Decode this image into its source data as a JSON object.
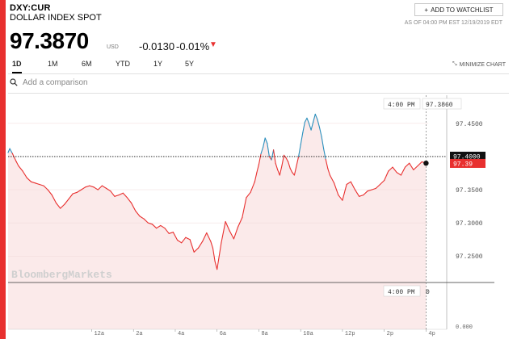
{
  "header": {
    "ticker": "DXY:CUR",
    "name": "DOLLAR INDEX SPOT",
    "watchlist_label": "ADD TO WATCHLIST",
    "as_of": "AS OF 04:00 PM EST 12/19/2019 EDT",
    "price": "97.3870",
    "currency": "USD",
    "change": "-0.0130",
    "change_pct": "-0.01%"
  },
  "tabs": [
    {
      "label": "1D",
      "active": true
    },
    {
      "label": "1M"
    },
    {
      "label": "6M"
    },
    {
      "label": "YTD"
    },
    {
      "label": "1Y"
    },
    {
      "label": "5Y"
    }
  ],
  "minimize_label": "MINIMIZE CHART",
  "compare": {
    "placeholder": "Add a comparison"
  },
  "colors": {
    "accent": "#e8302f",
    "rise": "#2a8fbd",
    "fall": "#e8302f",
    "fill": "#fbeaea"
  },
  "chart_data": {
    "type": "line",
    "watermark": "BloombergMarkets",
    "crosshair": {
      "time_label": "4:00 PM",
      "value_label": "97.3860",
      "volume_time_label": "4:00 PM",
      "volume_value_label": "0"
    },
    "reference_value": 97.4,
    "reference_label": "97.4000",
    "last_value_label": "97.39",
    "ylim": [
      97.215,
      97.49
    ],
    "y_ticks": [
      {
        "value": 97.45,
        "label": "97.4500"
      },
      {
        "value": 97.35,
        "label": "97.3500"
      },
      {
        "value": 97.3,
        "label": "97.3000"
      },
      {
        "value": 97.25,
        "label": "97.2500"
      }
    ],
    "volume_axis_label": "0.000",
    "x_ticks": [
      "12a",
      "2a",
      "4a",
      "6a",
      "8a",
      "10a",
      "12p",
      "2p",
      "4p"
    ],
    "x_tick_hours": [
      0,
      2,
      4,
      6,
      8,
      10,
      12,
      14,
      16
    ],
    "x_range_hours": [
      -4,
      16.1
    ],
    "series": [
      {
        "x": [
          -4,
          -3.92,
          -3.8,
          -3.6,
          -3.5,
          -3.3,
          -3.1,
          -2.9,
          -2.7,
          -2.5,
          -2.3,
          -2.1,
          -1.9,
          -1.7,
          -1.5,
          -1.3,
          -1.1,
          -0.9,
          -0.7,
          -0.5,
          -0.3,
          -0.1,
          0.1,
          0.3,
          0.5,
          0.7,
          0.9,
          1.1,
          1.3,
          1.5,
          1.7,
          1.9,
          2.1,
          2.3,
          2.5,
          2.7,
          2.9,
          3.1,
          3.3,
          3.5,
          3.7,
          3.9,
          4.1,
          4.3,
          4.5,
          4.7,
          4.9,
          5.1,
          5.3,
          5.5,
          5.7,
          5.8,
          5.9,
          6.0,
          6.2,
          6.4,
          6.6,
          6.8,
          7.0,
          7.2,
          7.4,
          7.6,
          7.8,
          7.9,
          8.0,
          8.1,
          8.2,
          8.3,
          8.4,
          8.5,
          8.6,
          8.7,
          8.8,
          8.9,
          9.0,
          9.1,
          9.2,
          9.3,
          9.4,
          9.5,
          9.6,
          9.7,
          9.8,
          9.9,
          10.0,
          10.1,
          10.2,
          10.3,
          10.4,
          10.5,
          10.6,
          10.7,
          10.8,
          10.9,
          11.0,
          11.1,
          11.2,
          11.3,
          11.4,
          11.6,
          11.8,
          12.0,
          12.2,
          12.4,
          12.6,
          12.8,
          13.0,
          13.2,
          13.4,
          13.6,
          13.8,
          14.0,
          14.2,
          14.4,
          14.6,
          14.8,
          15.0,
          15.2,
          15.4,
          15.6,
          15.8,
          16.0
        ],
        "y": [
          97.406,
          97.412,
          97.405,
          97.392,
          97.386,
          97.378,
          97.368,
          97.362,
          97.36,
          97.358,
          97.356,
          97.35,
          97.342,
          97.33,
          97.322,
          97.328,
          97.336,
          97.344,
          97.346,
          97.35,
          97.354,
          97.356,
          97.354,
          97.35,
          97.356,
          97.352,
          97.348,
          97.34,
          97.342,
          97.345,
          97.338,
          97.33,
          97.318,
          97.31,
          97.306,
          97.3,
          97.298,
          97.292,
          97.296,
          97.292,
          97.284,
          97.286,
          97.274,
          97.27,
          97.278,
          97.275,
          97.256,
          97.262,
          97.272,
          97.285,
          97.272,
          97.262,
          97.242,
          97.23,
          97.27,
          97.302,
          97.288,
          97.276,
          97.294,
          97.308,
          97.338,
          97.346,
          97.362,
          97.376,
          97.388,
          97.404,
          97.414,
          97.428,
          97.42,
          97.4,
          97.395,
          97.41,
          97.39,
          97.38,
          97.372,
          97.386,
          97.402,
          97.398,
          97.392,
          97.382,
          97.376,
          97.372,
          97.386,
          97.4,
          97.418,
          97.436,
          97.452,
          97.458,
          97.45,
          97.44,
          97.452,
          97.464,
          97.456,
          97.444,
          97.43,
          97.412,
          97.396,
          97.382,
          97.372,
          97.36,
          97.342,
          97.334,
          97.358,
          97.362,
          97.35,
          97.34,
          97.342,
          97.348,
          97.35,
          97.352,
          97.358,
          97.364,
          97.378,
          97.384,
          97.376,
          97.372,
          97.384,
          97.39,
          97.38,
          97.386,
          97.392,
          97.39
        ]
      }
    ]
  }
}
